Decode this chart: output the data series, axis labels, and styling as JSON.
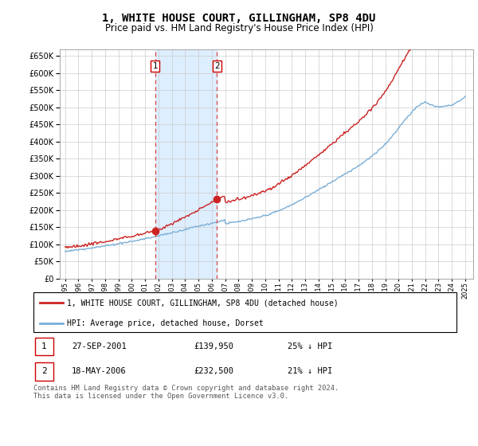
{
  "title": "1, WHITE HOUSE COURT, GILLINGHAM, SP8 4DU",
  "subtitle": "Price paid vs. HM Land Registry's House Price Index (HPI)",
  "title_fontsize": 10,
  "subtitle_fontsize": 8.5,
  "ylim": [
    0,
    670000
  ],
  "yticks": [
    0,
    50000,
    100000,
    150000,
    200000,
    250000,
    300000,
    350000,
    400000,
    450000,
    500000,
    550000,
    600000,
    650000
  ],
  "transaction1_price": 139950,
  "transaction1_x": 2001.75,
  "transaction2_price": 232500,
  "transaction2_x": 2006.38,
  "hpi_color": "#7aaed6",
  "property_color": "#cc2222",
  "shading_color": "#ddeeff",
  "vline_color": "#dd4444",
  "legend_property": "1, WHITE HOUSE COURT, GILLINGHAM, SP8 4DU (detached house)",
  "legend_hpi": "HPI: Average price, detached house, Dorset",
  "table_row1": [
    "1",
    "27-SEP-2001",
    "£139,950",
    "25% ↓ HPI"
  ],
  "table_row2": [
    "2",
    "18-MAY-2006",
    "£232,500",
    "21% ↓ HPI"
  ],
  "footnote": "Contains HM Land Registry data © Crown copyright and database right 2024.\nThis data is licensed under the Open Government Licence v3.0."
}
